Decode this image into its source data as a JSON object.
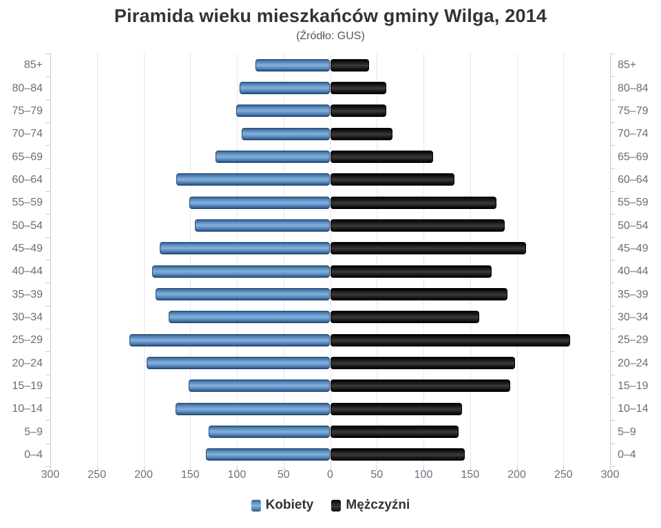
{
  "title": "Piramida wieku mieszkańców gminy Wilga, 2014",
  "subtitle": "(Źródło: GUS)",
  "colors": {
    "female_bar": "#4c80b8",
    "male_bar": "#1b1b1b",
    "grid": "#e6e6ec",
    "axis": "#c9ccd4",
    "category_label": "#6b6b75",
    "x_tick_label": "#68727c",
    "title": "#333333",
    "subtitle": "#555555"
  },
  "chart_data": {
    "type": "bar",
    "variant": "population-pyramid",
    "title": "Piramida wieku mieszkańców gminy Wilga, 2014",
    "subtitle": "(Źródło: GUS)",
    "categories": [
      "85+",
      "80–84",
      "75–79",
      "70–74",
      "65–69",
      "60–64",
      "55–59",
      "50–54",
      "45–49",
      "40–44",
      "35–39",
      "30–34",
      "25–29",
      "20–24",
      "15–19",
      "10–14",
      "5–9",
      "0–4"
    ],
    "series": [
      {
        "name": "Kobiety",
        "side": "left",
        "color": "#4c80b8",
        "values": [
          80,
          97,
          101,
          95,
          123,
          165,
          151,
          145,
          183,
          191,
          187,
          173,
          215,
          197,
          152,
          166,
          130,
          133
        ]
      },
      {
        "name": "Mężczyźni",
        "side": "right",
        "color": "#1b1b1b",
        "values": [
          42,
          60,
          60,
          67,
          110,
          133,
          178,
          187,
          210,
          173,
          190,
          160,
          257,
          198,
          193,
          141,
          138,
          144
        ]
      }
    ],
    "xlim": [
      0,
      300
    ],
    "xtick_step": 50,
    "xtick_labels": [
      "300",
      "250",
      "200",
      "150",
      "100",
      "50",
      "0",
      "50",
      "100",
      "150",
      "200",
      "250",
      "300"
    ],
    "grid": true,
    "legend_position": "bottom",
    "legend": [
      "Kobiety",
      "Mężczyźni"
    ]
  }
}
